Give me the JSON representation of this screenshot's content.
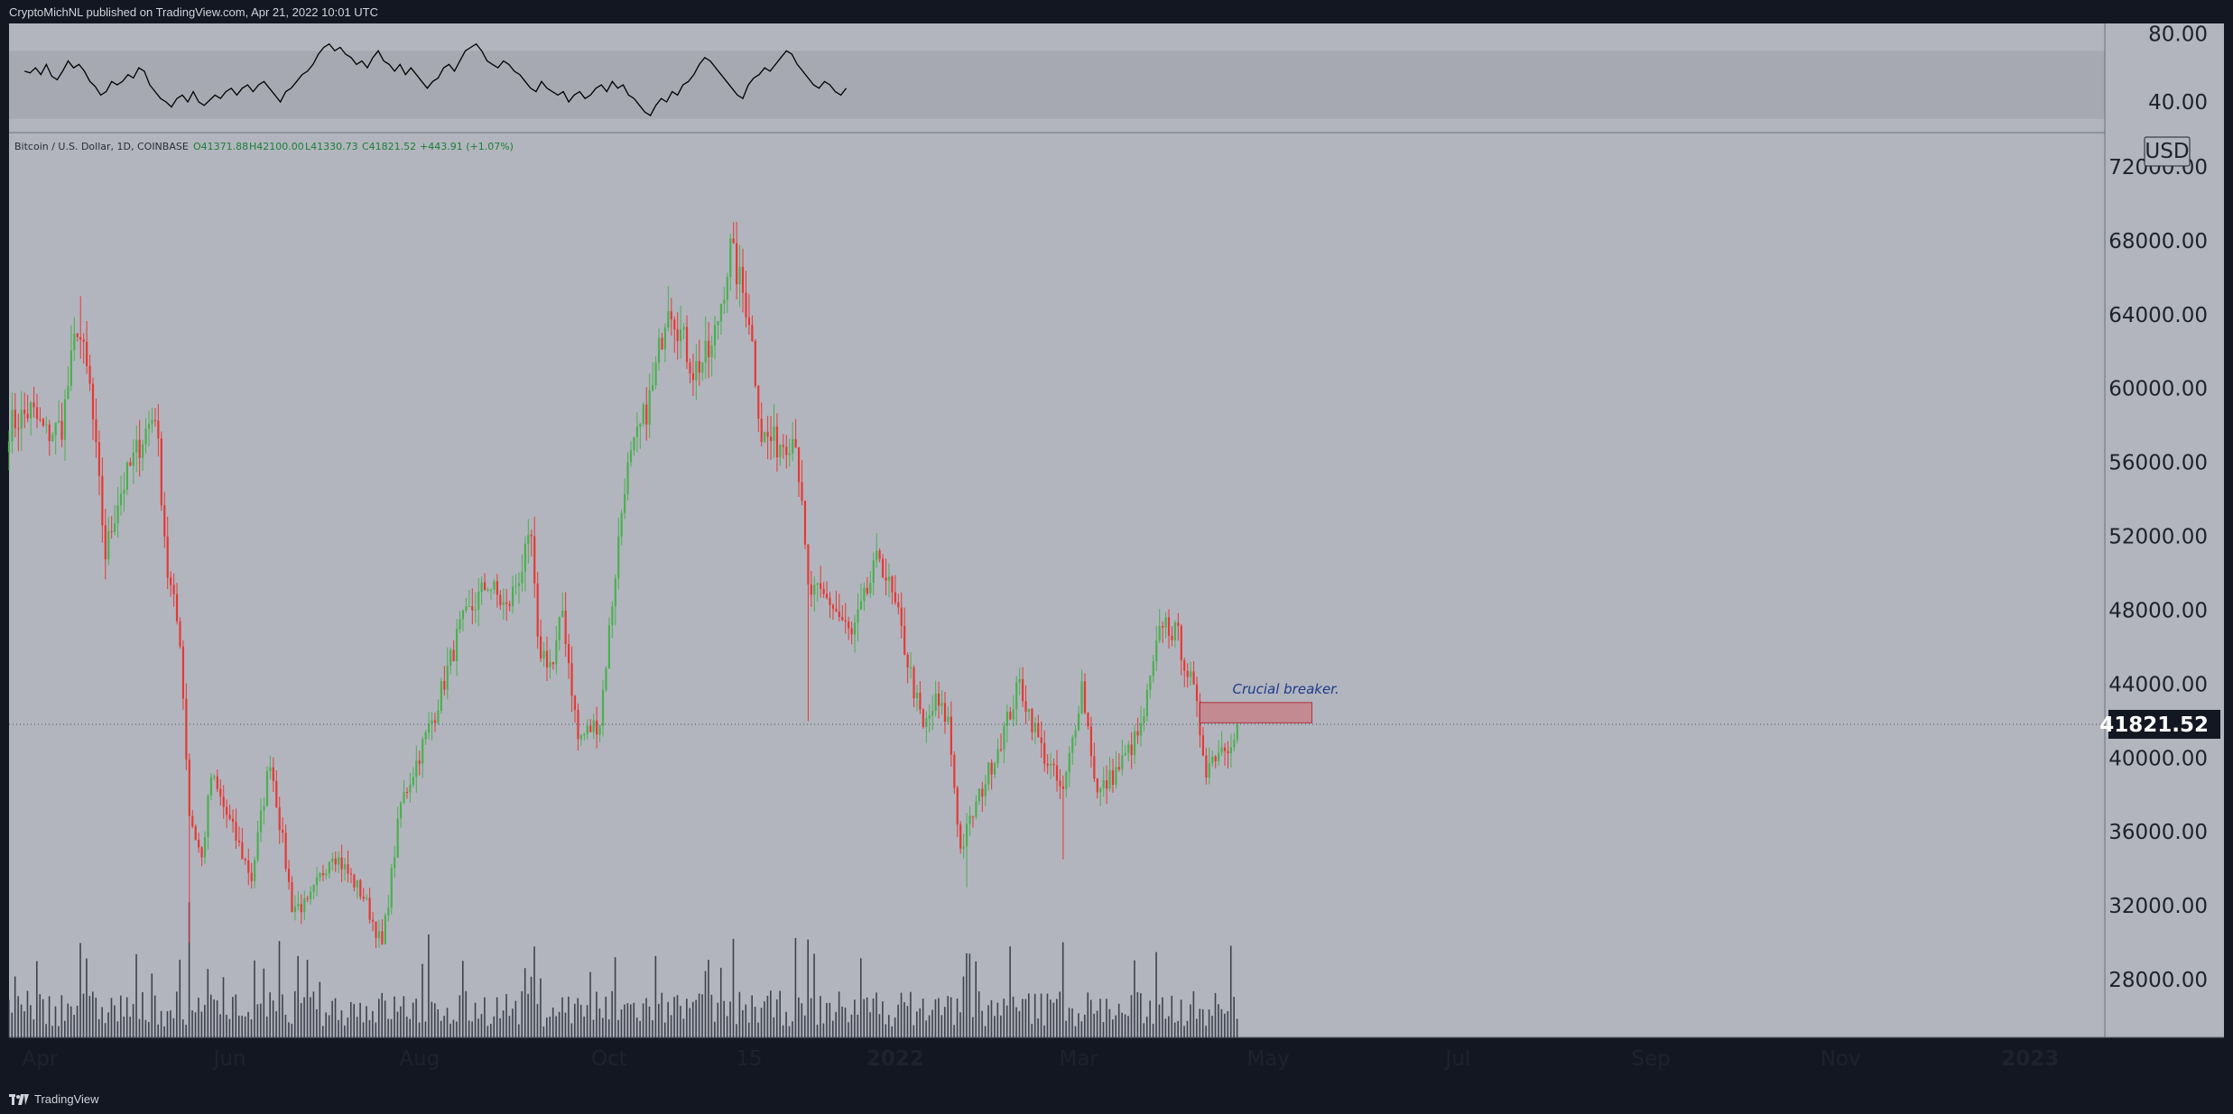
{
  "header": {
    "publish_text": "CryptoMichNL published on TradingView.com, Apr 21, 2022 10:01 UTC"
  },
  "footer": {
    "brand_label": "TradingView"
  },
  "legend": {
    "symbol": "Bitcoin / U.S. Dollar, 1D, COINBASE",
    "open": "O41371.88",
    "high": "H42100.00",
    "low": "L41330.73",
    "close": "C41821.52",
    "change": "+443.91 (+1.07%)"
  },
  "currency_label": "USD",
  "last_price_label": "41821.52",
  "annotation": {
    "text": "Crucial breaker.",
    "zone_low": 41900,
    "zone_high": 43000,
    "zone_start": "2022-04-09",
    "zone_end": "2022-05-15"
  },
  "colors": {
    "background": "#b2b5be",
    "up": "#4caf50",
    "down": "#e53935",
    "zone": "#c38a92",
    "annotation_text": "#1e3a8a",
    "rsi_line": "#000000",
    "volume": "#2a2e39"
  },
  "rsi": {
    "ticks": [
      "80.00",
      "40.00"
    ],
    "band": [
      30,
      70
    ],
    "range": [
      22,
      86
    ],
    "values": [
      58,
      57,
      60,
      56,
      62,
      55,
      53,
      58,
      64,
      60,
      62,
      58,
      52,
      49,
      44,
      46,
      52,
      50,
      52,
      56,
      54,
      60,
      58,
      50,
      46,
      42,
      40,
      37,
      42,
      44,
      40,
      46,
      40,
      38,
      41,
      44,
      42,
      46,
      48,
      44,
      48,
      50,
      46,
      50,
      52,
      48,
      44,
      40,
      46,
      48,
      52,
      56,
      58,
      62,
      68,
      72,
      74,
      70,
      72,
      68,
      66,
      62,
      64,
      60,
      66,
      70,
      64,
      62,
      58,
      62,
      56,
      60,
      56,
      52,
      48,
      52,
      54,
      60,
      62,
      58,
      64,
      70,
      72,
      74,
      70,
      64,
      62,
      60,
      64,
      62,
      58,
      56,
      52,
      48,
      46,
      52,
      48,
      46,
      44,
      46,
      40,
      44,
      46,
      42,
      44,
      48,
      50,
      46,
      52,
      48,
      50,
      44,
      42,
      38,
      34,
      32,
      38,
      42,
      40,
      46,
      44,
      50,
      52,
      56,
      62,
      66,
      64,
      60,
      56,
      52,
      48,
      44,
      42,
      50,
      54,
      56,
      60,
      58,
      62,
      66,
      70,
      68,
      62,
      58,
      54,
      50,
      48,
      52,
      50,
      46,
      44,
      48
    ],
    "start": "2021-03-27",
    "step_days": 1.75
  },
  "chart_data": {
    "type": "candlestick",
    "title": "",
    "xlabel": "",
    "ylabel": "",
    "ylim": [
      25000,
      72000
    ],
    "y_ticks": [
      28000,
      32000,
      36000,
      40000,
      44000,
      48000,
      52000,
      56000,
      60000,
      64000,
      68000,
      72000
    ],
    "x_range": [
      "2021-03-22",
      "2023-01-25"
    ],
    "x_ticks": [
      {
        "label": "Apr",
        "date": "2021-04-01",
        "bold": false
      },
      {
        "label": "Jun",
        "date": "2021-06-01",
        "bold": false
      },
      {
        "label": "Aug",
        "date": "2021-08-01",
        "bold": false
      },
      {
        "label": "Oct",
        "date": "2021-10-01",
        "bold": false
      },
      {
        "label": "15",
        "date": "2021-11-15",
        "bold": false
      },
      {
        "label": "2022",
        "date": "2022-01-01",
        "bold": true
      },
      {
        "label": "Mar",
        "date": "2022-03-01",
        "bold": false
      },
      {
        "label": "May",
        "date": "2022-05-01",
        "bold": false
      },
      {
        "label": "Jul",
        "date": "2022-07-01",
        "bold": false
      },
      {
        "label": "Sep",
        "date": "2022-09-01",
        "bold": false
      },
      {
        "label": "Nov",
        "date": "2022-11-01",
        "bold": false
      },
      {
        "label": "2023",
        "date": "2023-01-01",
        "bold": true
      }
    ],
    "last_price": 41821.52,
    "interval_days": 1,
    "series_key_points": [
      {
        "date": "2021-03-22",
        "close": 58000
      },
      {
        "date": "2021-03-29",
        "close": 58800
      },
      {
        "date": "2021-04-03",
        "close": 57500
      },
      {
        "date": "2021-04-08",
        "close": 58000
      },
      {
        "date": "2021-04-13",
        "close": 63500
      },
      {
        "date": "2021-04-17",
        "close": 60000
      },
      {
        "date": "2021-04-22",
        "close": 51000
      },
      {
        "date": "2021-04-26",
        "close": 54000
      },
      {
        "date": "2021-05-03",
        "close": 57000
      },
      {
        "date": "2021-05-08",
        "close": 58800
      },
      {
        "date": "2021-05-12",
        "close": 50000
      },
      {
        "date": "2021-05-16",
        "close": 46500
      },
      {
        "date": "2021-05-19",
        "close": 37000
      },
      {
        "date": "2021-05-23",
        "close": 34500
      },
      {
        "date": "2021-05-26",
        "close": 39000
      },
      {
        "date": "2021-06-01",
        "close": 36500
      },
      {
        "date": "2021-06-08",
        "close": 33500
      },
      {
        "date": "2021-06-14",
        "close": 40000
      },
      {
        "date": "2021-06-21",
        "close": 32000
      },
      {
        "date": "2021-06-26",
        "close": 32000
      },
      {
        "date": "2021-07-04",
        "close": 35000
      },
      {
        "date": "2021-07-14",
        "close": 32500
      },
      {
        "date": "2021-07-20",
        "close": 29800
      },
      {
        "date": "2021-07-26",
        "close": 37500
      },
      {
        "date": "2021-08-06",
        "close": 42500
      },
      {
        "date": "2021-08-14",
        "close": 47000
      },
      {
        "date": "2021-08-23",
        "close": 49500
      },
      {
        "date": "2021-08-29",
        "close": 48000
      },
      {
        "date": "2021-09-06",
        "close": 51800
      },
      {
        "date": "2021-09-08",
        "close": 46000
      },
      {
        "date": "2021-09-13",
        "close": 45000
      },
      {
        "date": "2021-09-16",
        "close": 48000
      },
      {
        "date": "2021-09-21",
        "close": 41000
      },
      {
        "date": "2021-09-28",
        "close": 42000
      },
      {
        "date": "2021-10-06",
        "close": 55000
      },
      {
        "date": "2021-10-15",
        "close": 60000
      },
      {
        "date": "2021-10-20",
        "close": 65000
      },
      {
        "date": "2021-10-28",
        "close": 61000
      },
      {
        "date": "2021-11-03",
        "close": 62000
      },
      {
        "date": "2021-11-09",
        "close": 67500
      },
      {
        "date": "2021-11-15",
        "close": 64000
      },
      {
        "date": "2021-11-19",
        "close": 57500
      },
      {
        "date": "2021-11-24",
        "close": 57000
      },
      {
        "date": "2021-11-30",
        "close": 57500
      },
      {
        "date": "2021-12-04",
        "close": 49000
      },
      {
        "date": "2021-12-11",
        "close": 48500
      },
      {
        "date": "2021-12-18",
        "close": 46500
      },
      {
        "date": "2021-12-27",
        "close": 51000
      },
      {
        "date": "2022-01-02",
        "close": 47500
      },
      {
        "date": "2022-01-10",
        "close": 41500
      },
      {
        "date": "2022-01-14",
        "close": 43000
      },
      {
        "date": "2022-01-18",
        "close": 42000
      },
      {
        "date": "2022-01-22",
        "close": 35000
      },
      {
        "date": "2022-01-26",
        "close": 37000
      },
      {
        "date": "2022-02-05",
        "close": 41500
      },
      {
        "date": "2022-02-10",
        "close": 44000
      },
      {
        "date": "2022-02-17",
        "close": 40500
      },
      {
        "date": "2022-02-24",
        "close": 38000
      },
      {
        "date": "2022-03-02",
        "close": 44000
      },
      {
        "date": "2022-03-07",
        "close": 38000
      },
      {
        "date": "2022-03-14",
        "close": 39500
      },
      {
        "date": "2022-03-21",
        "close": 41500
      },
      {
        "date": "2022-03-28",
        "close": 47500
      },
      {
        "date": "2022-04-02",
        "close": 46500
      },
      {
        "date": "2022-04-07",
        "close": 43500
      },
      {
        "date": "2022-04-11",
        "close": 39500
      },
      {
        "date": "2022-04-15",
        "close": 40500
      },
      {
        "date": "2022-04-18",
        "close": 40800
      },
      {
        "date": "2022-04-21",
        "close": 41821.52
      }
    ],
    "spikes": [
      {
        "date": "2021-05-19",
        "low": 30000
      },
      {
        "date": "2021-12-04",
        "low": 42000
      },
      {
        "date": "2022-01-24",
        "low": 33000
      },
      {
        "date": "2022-02-24",
        "low": 34500
      },
      {
        "date": "2021-11-10",
        "high": 69000
      },
      {
        "date": "2021-04-14",
        "high": 65000
      }
    ],
    "volume": {
      "range": [
        0,
        7000
      ]
    }
  }
}
